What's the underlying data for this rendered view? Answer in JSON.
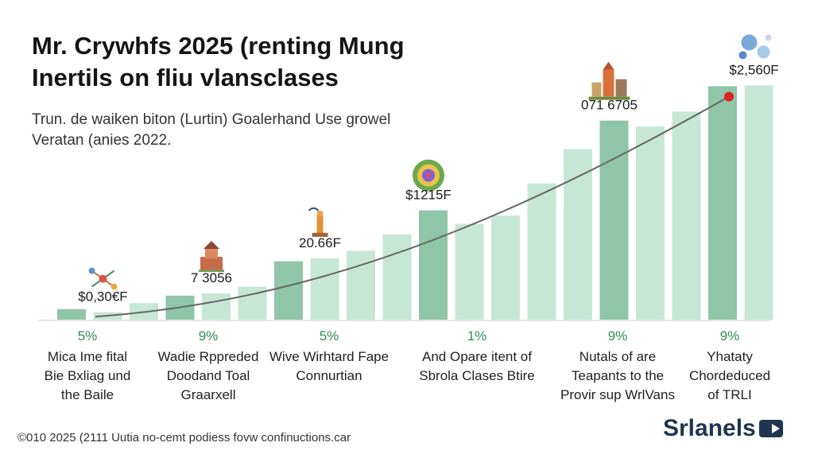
{
  "title": {
    "line1": "Mr. Crywhfs 2025 (renting Mung",
    "line2": "Inertils on fliu vlansclases"
  },
  "subtitle": {
    "line1": "Trun. de waiken biton (Lurtin) Goalerhand Use growel",
    "line2": "Veratan (anies 2022."
  },
  "colors": {
    "bar_dark": "#8fc5a8",
    "bar_light": "#c7e7d6",
    "trend_line": "#666666",
    "marker": "#e02020",
    "pct_label": "#2e8b57"
  },
  "chart_data": {
    "type": "bar",
    "values": [
      1.4,
      1.0,
      2.2,
      3.2,
      3.5,
      4.4,
      7.8,
      8.2,
      9.2,
      11.4,
      14.6,
      12.8,
      13.9,
      18.2,
      22.8,
      26.6,
      25.8,
      27.8,
      31.2,
      31.3
    ],
    "series_style": [
      "dark",
      "light",
      "light",
      "dark",
      "light",
      "light",
      "dark",
      "light",
      "light",
      "light",
      "dark",
      "light",
      "light",
      "light",
      "light",
      "dark",
      "light",
      "light",
      "dark",
      "light"
    ],
    "ylim": [
      0,
      34
    ],
    "trend_line": true,
    "value_labels": [
      {
        "bar": 1,
        "text": "$0,30€F"
      },
      {
        "bar": 4,
        "text": "7 3056"
      },
      {
        "bar": 7,
        "text": "20.66F"
      },
      {
        "bar": 10,
        "text": "$1215F"
      },
      {
        "bar": 15,
        "text": "071 6705"
      },
      {
        "bar": 19,
        "text": "$2,560F"
      }
    ],
    "icons": [
      "people-network-icon",
      "temple-icon",
      "statue-icon",
      "mandala-icon",
      "city-skyline-icon",
      "bubbles-icon"
    ],
    "groups": [
      {
        "pct": "5%",
        "label": [
          "Mica Ime fital",
          "Bie Bxliag und",
          "the Baile"
        ]
      },
      {
        "pct": "9%",
        "label": [
          "Wadie Rppreded",
          "Doodand Toal",
          "Graarxell"
        ]
      },
      {
        "pct": "5%",
        "label": [
          "Wive Wirhtard Fape",
          "Connurtian"
        ]
      },
      {
        "pct": "1%",
        "label": [
          "And Opare itent of",
          "Sbrola Clases Btire"
        ]
      },
      {
        "pct": "9%",
        "label": [
          "Nutals of are",
          "Teapants to the",
          "Provir sup WrlVans"
        ]
      },
      {
        "pct": "9%",
        "label": [
          "Yhataty",
          "Chordeduced",
          "of TRLI"
        ]
      }
    ]
  },
  "footer": {
    "copyright": "©010 2025 (2111 Uutia no-cemt podiess fovw confinuctions.car",
    "brand": "Srlanels"
  }
}
